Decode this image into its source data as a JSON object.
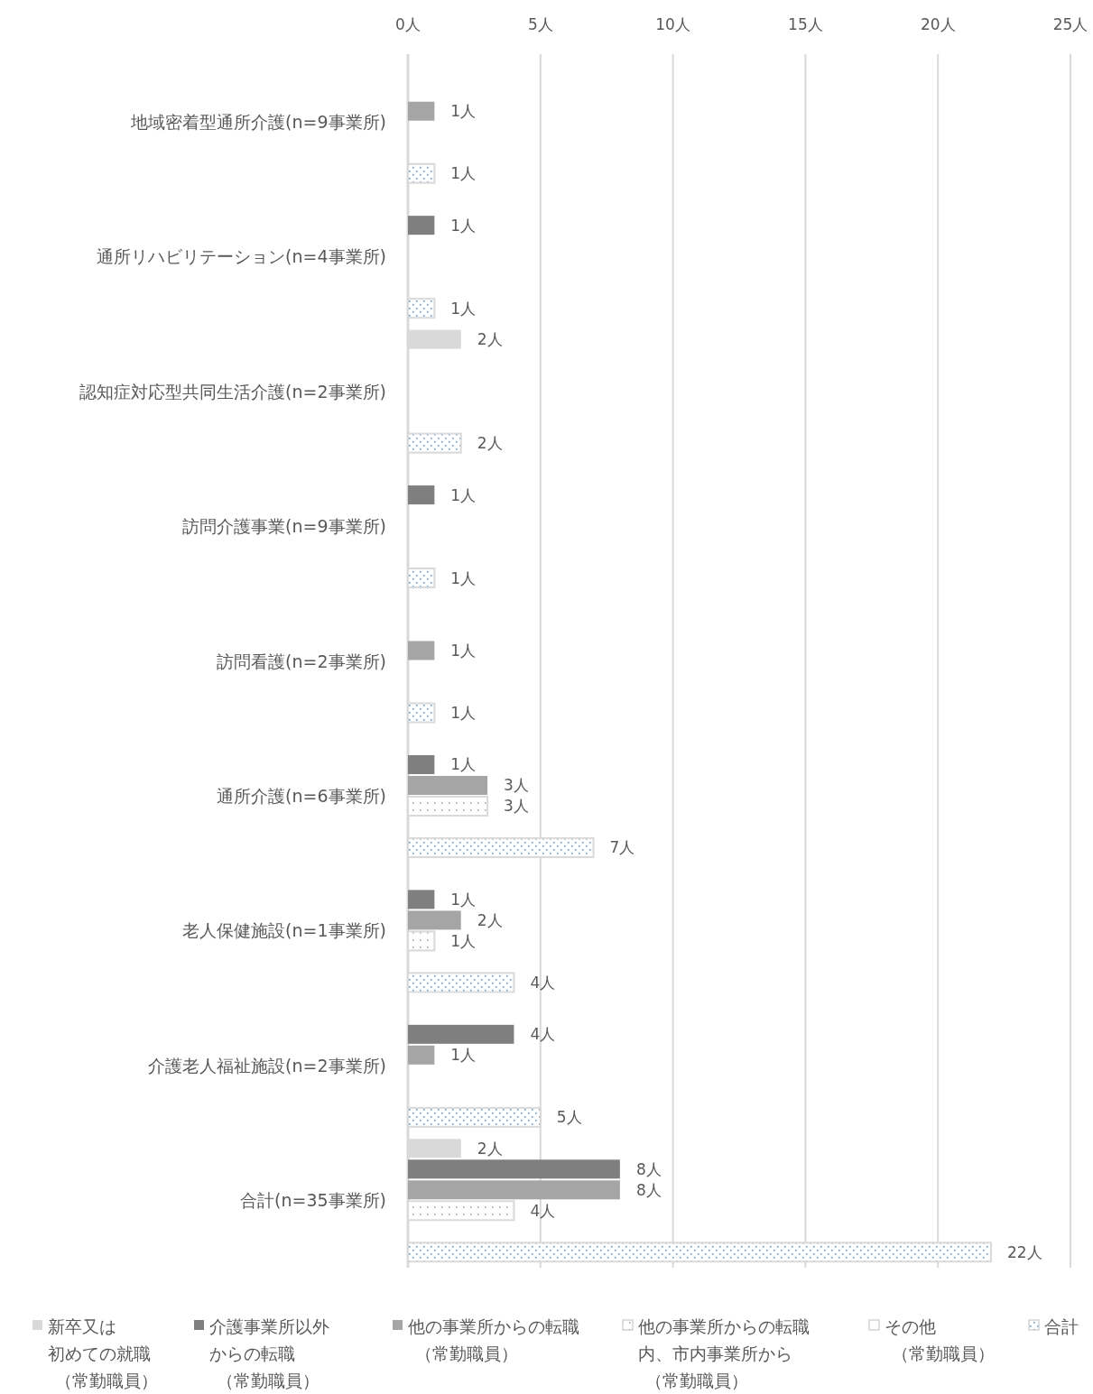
{
  "chart_data": {
    "type": "bar",
    "orientation": "horizontal",
    "categories": [
      "地域密着型通所介護(n=9事業所)",
      "通所リハビリテーション(n=4事業所)",
      "認知症対応型共同生活介護(n=2事業所)",
      "訪問介護事業(n=9事業所)",
      "訪問看護(n=2事業所)",
      "通所介護(n=6事業所)",
      "老人保健施設(n=1事業所)",
      "介護老人福祉施設(n=2事業所)",
      "合計(n=35事業所)"
    ],
    "series": [
      {
        "name": "新卒又は初めての就職（常勤職員）",
        "color": "#d9d9d9",
        "values": [
          null,
          null,
          2,
          null,
          null,
          null,
          null,
          null,
          2
        ],
        "value_labels": [
          null,
          null,
          "2人",
          null,
          null,
          null,
          null,
          null,
          "2人"
        ]
      },
      {
        "name": "介護事業所以外からの転職（常勤職員）",
        "color": "#7f7f7f",
        "values": [
          null,
          1,
          null,
          1,
          null,
          1,
          1,
          4,
          8
        ],
        "value_labels": [
          null,
          "1人",
          null,
          "1人",
          null,
          "1人",
          "1人",
          "4人",
          "8人"
        ]
      },
      {
        "name": "他の事業所からの転職（常勤職員）",
        "color": "#a5a5a5",
        "values": [
          1,
          null,
          null,
          null,
          1,
          3,
          2,
          1,
          8
        ],
        "value_labels": [
          "1人",
          null,
          null,
          null,
          "1人",
          "3人",
          "2人",
          "1人",
          "8人"
        ]
      },
      {
        "name": "他の事業所からの転職内、市内事業所から（常勤職員）",
        "color": "#d9d9d9",
        "values": [
          null,
          null,
          null,
          null,
          null,
          3,
          1,
          null,
          4
        ],
        "value_labels": [
          null,
          null,
          null,
          null,
          null,
          "3人",
          "1人",
          null,
          "4人"
        ]
      },
      {
        "name": "その他（常勤職員）",
        "color": "#ffffff",
        "values": [
          null,
          null,
          null,
          null,
          null,
          null,
          null,
          null,
          null
        ]
      },
      {
        "name": "合計",
        "color": "#d9d9d9",
        "values": [
          1,
          1,
          2,
          1,
          1,
          7,
          4,
          5,
          22
        ],
        "value_labels": [
          "1人",
          "1人",
          "2人",
          "1人",
          "1人",
          "7人",
          "4人",
          "5人",
          "22人"
        ]
      }
    ],
    "xlim": [
      0,
      25
    ],
    "xticks": [
      {
        "value": 0,
        "label": "0人"
      },
      {
        "value": 5,
        "label": "5人"
      },
      {
        "value": 10,
        "label": "10人"
      },
      {
        "value": 15,
        "label": "15人"
      },
      {
        "value": 20,
        "label": "20人"
      },
      {
        "value": 25,
        "label": "25人"
      }
    ],
    "grid": "x",
    "legend": "bottom"
  }
}
